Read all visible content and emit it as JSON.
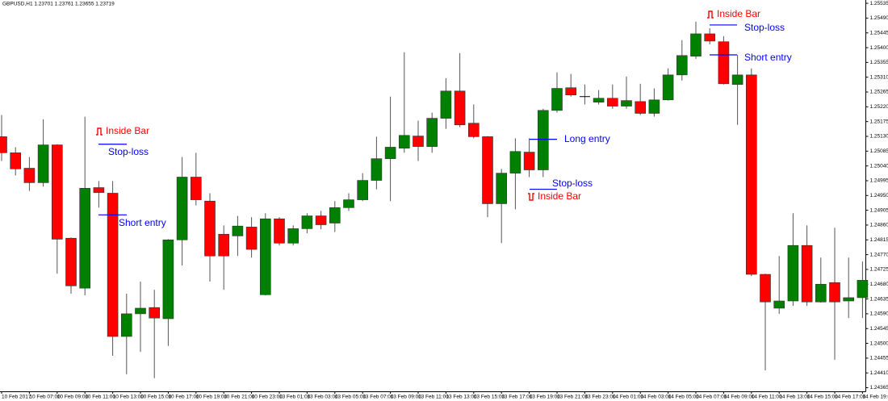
{
  "chart_data": {
    "type": "candlestick",
    "title": "GBPUSD,H1  1.23701 1.23761 1.23655 1.23719",
    "categories": [
      "10 Feb 2017",
      null,
      "10 Feb 07:00",
      null,
      "10 Feb 09:00",
      null,
      "10 Feb 11:00",
      null,
      "10 Feb 13:00",
      null,
      "10 Feb 15:00",
      null,
      "10 Feb 17:00",
      null,
      "10 Feb 19:00",
      null,
      "10 Feb 21:00",
      null,
      "10 Feb 23:00",
      null,
      "13 Feb 01:00",
      null,
      "13 Feb 03:00",
      null,
      "13 Feb 05:00",
      null,
      "13 Feb 07:00",
      null,
      "13 Feb 09:00",
      null,
      "13 Feb 11:00",
      null,
      "13 Feb 13:00",
      null,
      "13 Feb 15:00",
      null,
      "13 Feb 17:00",
      null,
      "13 Feb 19:00",
      null,
      "13 Feb 21:00",
      null,
      "13 Feb 23:00",
      null,
      "14 Feb 01:00",
      null,
      "14 Feb 03:00",
      null,
      "14 Feb 05:00",
      null,
      "14 Feb 07:00",
      null,
      "14 Feb 09:00",
      null,
      "14 Feb 11:00",
      null,
      "14 Feb 13:00",
      null,
      "14 Feb 15:00",
      null,
      "14 Feb 17:00",
      null,
      "14 Feb 19:00"
    ],
    "open": [
      1.25129,
      1.2508,
      1.25033,
      1.24989,
      1.25104,
      1.2482,
      1.24668,
      1.24974,
      1.24957,
      1.24521,
      1.2459,
      1.24609,
      1.24575,
      1.24815,
      1.25006,
      1.24933,
      1.24832,
      1.24827,
      1.24854,
      1.24648,
      1.24879,
      1.24805,
      1.24849,
      1.24888,
      1.24866,
      1.24913,
      1.24937,
      1.24996,
      1.25062,
      1.25094,
      1.25131,
      1.25099,
      1.25185,
      1.25268,
      1.2517,
      1.25129,
      1.24925,
      1.25018,
      1.25082,
      1.25028,
      1.25209,
      1.25278,
      1.25251,
      1.25234,
      1.25246,
      1.25222,
      1.25236,
      1.252,
      1.25241,
      1.25317,
      1.25374,
      1.25442,
      1.25418,
      1.25288,
      1.25317,
      1.2471,
      1.24607,
      1.24629,
      1.24798,
      1.24626,
      1.24685,
      1.24629,
      1.24639
    ],
    "high": [
      1.25195,
      1.25097,
      1.25067,
      1.25182,
      1.25106,
      1.24822,
      1.2519,
      1.24994,
      1.24994,
      1.24651,
      1.24688,
      1.24663,
      1.24817,
      1.25067,
      1.2508,
      1.24957,
      1.24859,
      1.24888,
      1.24884,
      1.24896,
      1.24884,
      1.24859,
      1.24896,
      1.24903,
      1.24933,
      1.24957,
      1.25018,
      1.25129,
      1.25251,
      1.25386,
      1.25178,
      1.25202,
      1.25307,
      1.25383,
      1.25227,
      1.25131,
      1.25031,
      1.25124,
      1.25124,
      1.25214,
      1.25325,
      1.2532,
      1.25288,
      1.25271,
      1.25288,
      1.25312,
      1.2529,
      1.25276,
      1.25337,
      1.25423,
      1.25479,
      1.25459,
      1.25435,
      1.25378,
      1.25337,
      1.24712,
      1.24766,
      1.24896,
      1.24859,
      1.24761,
      1.24852,
      1.24761,
      1.24749
    ],
    "low": [
      1.25055,
      1.25011,
      1.24964,
      1.24977,
      1.24712,
      1.24651,
      1.24646,
      1.24913,
      1.24462,
      1.24406,
      1.24474,
      1.24394,
      1.24492,
      1.24737,
      1.2492,
      1.24688,
      1.24663,
      1.24766,
      1.24761,
      1.24646,
      1.24798,
      1.24798,
      1.24835,
      1.24847,
      1.24839,
      1.24903,
      1.24933,
      1.24969,
      1.24933,
      1.2508,
      1.25055,
      1.2508,
      1.25153,
      1.25158,
      1.25124,
      1.24884,
      1.24805,
      1.24908,
      1.25006,
      1.25006,
      1.25202,
      1.25251,
      1.25227,
      1.25227,
      1.25214,
      1.25214,
      1.25195,
      1.2519,
      1.25239,
      1.253,
      1.25366,
      1.2541,
      1.25288,
      1.25165,
      1.24705,
      1.24418,
      1.2459,
      1.24614,
      1.24614,
      1.24624,
      1.2445,
      1.24577,
      1.24577
    ],
    "close": [
      1.2508,
      1.25031,
      1.24989,
      1.25104,
      1.24817,
      1.24675,
      1.24972,
      1.24959,
      1.24521,
      1.2459,
      1.24607,
      1.24577,
      1.24815,
      1.25006,
      1.24937,
      1.24766,
      1.24766,
      1.24857,
      1.24786,
      1.24879,
      1.24805,
      1.24849,
      1.24888,
      1.24861,
      1.24913,
      1.24937,
      1.24996,
      1.25062,
      1.25097,
      1.25133,
      1.25099,
      1.25185,
      1.25268,
      1.25165,
      1.25129,
      1.24925,
      1.25018,
      1.25084,
      1.25028,
      1.25209,
      1.25276,
      1.25256,
      1.25251,
      1.25246,
      1.25222,
      1.25239,
      1.252,
      1.25241,
      1.25317,
      1.25376,
      1.25442,
      1.2542,
      1.2529,
      1.25317,
      1.2471,
      1.24626,
      1.24629,
      1.24798,
      1.24626,
      1.2468,
      1.24626,
      1.24639,
      1.24692
    ],
    "up_color": "#008000",
    "down_color": "#ff0000",
    "ylim": [
      1.24354,
      1.25545
    ],
    "yticks": [
      1.25535,
      {
        "value": 1.2549,
        "label": "1.25490"
      },
      1.25445,
      {
        "value": 1.254,
        "label": "1.25400"
      },
      1.25355,
      {
        "value": 1.2531,
        "label": "1.25310"
      },
      1.25265,
      {
        "value": 1.2522,
        "label": "1.25220"
      },
      1.25175,
      {
        "value": 1.2513,
        "label": "1.25130"
      },
      1.25085,
      {
        "value": 1.2504,
        "label": "1.25040"
      },
      1.24995,
      {
        "value": 1.2495,
        "label": "1.24950"
      },
      1.24905,
      {
        "value": 1.2486,
        "label": "1.24860"
      },
      1.24815,
      {
        "value": 1.2477,
        "label": "1.24770"
      },
      1.24725,
      {
        "value": 1.2468,
        "label": "1.24680"
      },
      1.24635,
      {
        "value": 1.2459,
        "label": "1.24590"
      },
      1.24545,
      {
        "value": 1.245,
        "label": "1.24500"
      },
      1.24455,
      {
        "value": 1.2441,
        "label": "1.24410"
      },
      1.24365
    ],
    "grid": false,
    "annotations": [
      {
        "text": "Inside Bar",
        "color": "#ff0000"
      },
      {
        "text": "Stop-loss",
        "color": "#0000ff",
        "level": 1.25106
      },
      {
        "text": "Short entry",
        "color": "#0000ff",
        "level": 1.24891
      },
      {
        "text": "Long entry",
        "color": "#0000ff",
        "level": 1.25121
      },
      {
        "text": "Stop-loss",
        "color": "#0000ff",
        "level": 1.24969
      },
      {
        "text": "Inside Bar",
        "color": "#ff0000"
      },
      {
        "text": "Inside Bar",
        "color": "#ff0000"
      },
      {
        "text": "Stop-loss",
        "color": "#0000ff",
        "level": 1.25469
      },
      {
        "text": "Short entry",
        "color": "#0000ff",
        "level": 1.25378
      }
    ]
  }
}
